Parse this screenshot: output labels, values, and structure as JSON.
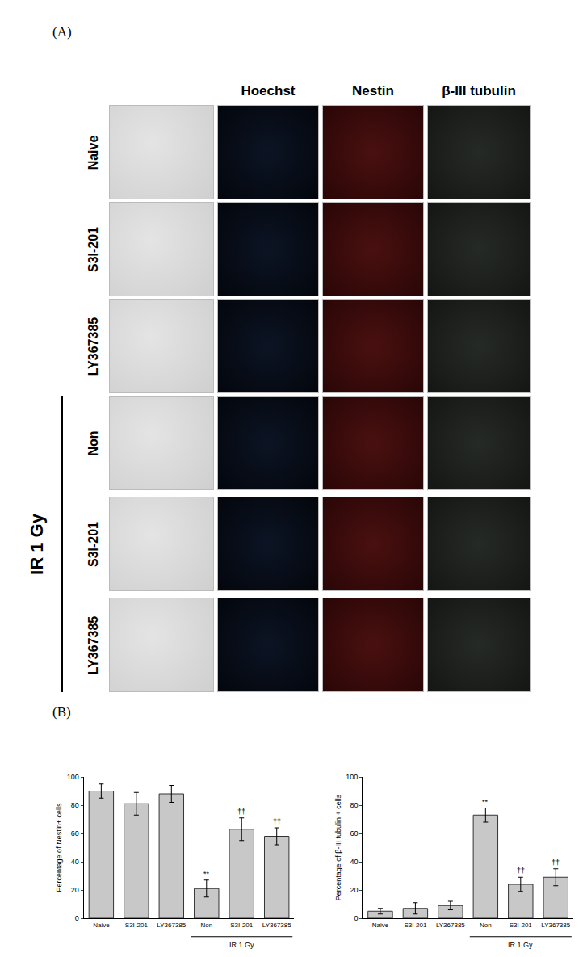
{
  "panel_labels": [
    "(A)",
    "(B)"
  ],
  "images": {
    "columns": [
      "Hoechst",
      "Nestin",
      "β-III tubulin"
    ],
    "rows": [
      "Naive",
      "S3I-201",
      "LY367385",
      "Non",
      "S3I-201",
      "LY367385"
    ],
    "group_label": "IR 1 Gy",
    "group_rows": [
      3,
      4,
      5
    ]
  },
  "chart_data": [
    {
      "type": "bar",
      "y_label": "Percentage of Nestin+ cells",
      "categories": [
        "Naive",
        "S3I-201",
        "LY367385",
        "Non",
        "S3I-201",
        "LY367385"
      ],
      "values": [
        90,
        81,
        88,
        21,
        63,
        58
      ],
      "errors": [
        5,
        8,
        6,
        6,
        8,
        6
      ],
      "color": "#c8c8c8",
      "ylim": [
        0,
        100
      ],
      "yticks": [
        0,
        20,
        40,
        60,
        80,
        100
      ],
      "grid": false,
      "annotations": [
        {
          "category": 3,
          "text": "**"
        },
        {
          "category": 4,
          "text": "††"
        },
        {
          "category": 5,
          "text": "††"
        }
      ],
      "group_label": "IR 1 Gy",
      "group_categories": [
        3,
        4,
        5
      ]
    },
    {
      "type": "bar",
      "y_label": "Percentage of β-III tubulin + cells",
      "categories": [
        "Naive",
        "S3I-201",
        "LY367385",
        "Non",
        "S3I-201",
        "LY367385"
      ],
      "values": [
        5,
        7,
        9,
        73,
        24,
        29
      ],
      "errors": [
        2,
        4,
        3,
        5,
        5,
        6
      ],
      "color": "#c8c8c8",
      "ylim": [
        0,
        100
      ],
      "yticks": [
        0,
        20,
        40,
        60,
        80,
        100
      ],
      "grid": false,
      "annotations": [
        {
          "category": 3,
          "text": "**"
        },
        {
          "category": 4,
          "text": "††"
        },
        {
          "category": 5,
          "text": "††"
        }
      ],
      "group_label": "IR 1 Gy",
      "group_categories": [
        3,
        4,
        5
      ]
    }
  ]
}
